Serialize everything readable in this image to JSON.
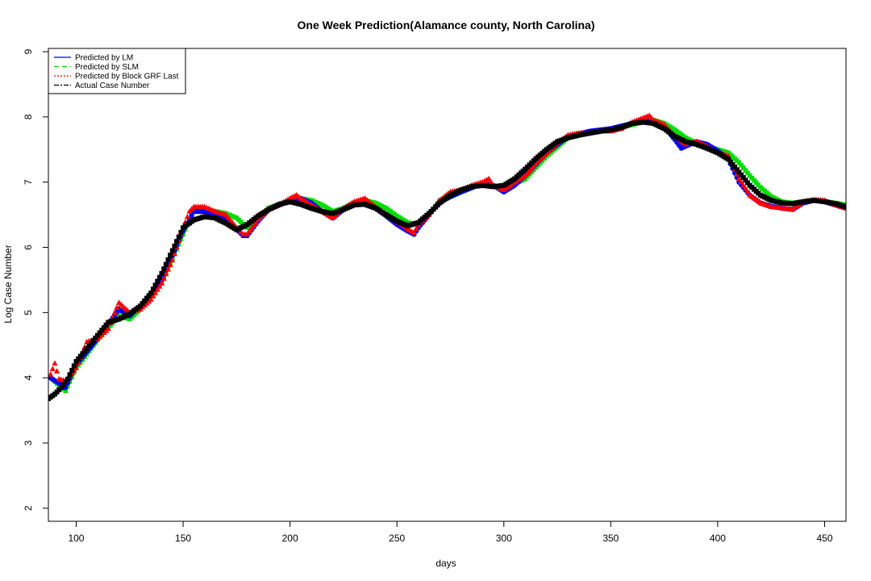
{
  "chart_data": {
    "type": "scatter",
    "title": "One Week Prediction(Alamance county, North Carolina)",
    "xlabel": "days",
    "ylabel": "Log Case Number",
    "xlim": [
      87,
      460
    ],
    "ylim": [
      1.8,
      9.05
    ],
    "x_ticks": [
      "100",
      "150",
      "200",
      "250",
      "300",
      "350",
      "400",
      "450"
    ],
    "y_ticks": [
      "2",
      "3",
      "4",
      "5",
      "6",
      "7",
      "8",
      "9"
    ],
    "legend_position": "top-left",
    "grid": false,
    "series": [
      {
        "name": "Predicted by LM",
        "style": "solid line / circles",
        "color": "#0000ff",
        "x": [
          88,
          95,
          100,
          110,
          120,
          125,
          130,
          140,
          150,
          155,
          160,
          165,
          170,
          175,
          178,
          180,
          185,
          190,
          200,
          205,
          210,
          215,
          220,
          225,
          230,
          235,
          240,
          245,
          250,
          255,
          258,
          260,
          265,
          270,
          280,
          290,
          295,
          300,
          305,
          310,
          320,
          330,
          340,
          350,
          360,
          365,
          370,
          375,
          380,
          383,
          385,
          390,
          395,
          400,
          405,
          410,
          415,
          420,
          425,
          430,
          435,
          440,
          445,
          450,
          455,
          460
        ],
        "y": [
          4.0,
          3.85,
          4.2,
          4.6,
          5.05,
          4.95,
          5.1,
          5.5,
          6.25,
          6.55,
          6.55,
          6.5,
          6.45,
          6.28,
          6.18,
          6.18,
          6.4,
          6.58,
          6.72,
          6.75,
          6.68,
          6.55,
          6.45,
          6.58,
          6.68,
          6.7,
          6.6,
          6.48,
          6.35,
          6.25,
          6.2,
          6.3,
          6.5,
          6.7,
          6.85,
          6.98,
          6.95,
          6.85,
          6.95,
          7.1,
          7.45,
          7.7,
          7.78,
          7.82,
          7.9,
          7.95,
          7.93,
          7.85,
          7.65,
          7.52,
          7.55,
          7.62,
          7.58,
          7.48,
          7.35,
          7.0,
          6.8,
          6.68,
          6.63,
          6.6,
          6.58,
          6.68,
          6.72,
          6.7,
          6.65,
          6.6
        ]
      },
      {
        "name": "Predicted by SLM",
        "style": "dashed line / squares",
        "color": "#00dd00",
        "x": [
          88,
          95,
          100,
          110,
          120,
          125,
          130,
          140,
          150,
          155,
          160,
          165,
          170,
          175,
          180,
          185,
          190,
          200,
          205,
          210,
          215,
          220,
          225,
          230,
          235,
          240,
          245,
          250,
          255,
          260,
          265,
          270,
          280,
          290,
          300,
          310,
          320,
          330,
          340,
          350,
          360,
          365,
          370,
          375,
          380,
          385,
          390,
          395,
          400,
          405,
          410,
          415,
          420,
          425,
          430,
          435,
          440,
          445,
          450,
          455,
          460
        ],
        "y": [
          4.0,
          3.8,
          4.15,
          4.58,
          4.95,
          4.9,
          5.05,
          5.45,
          6.2,
          6.58,
          6.58,
          6.55,
          6.52,
          6.45,
          6.3,
          6.45,
          6.6,
          6.72,
          6.75,
          6.72,
          6.65,
          6.55,
          6.6,
          6.68,
          6.72,
          6.68,
          6.6,
          6.48,
          6.38,
          6.35,
          6.5,
          6.72,
          6.85,
          6.98,
          6.9,
          7.05,
          7.4,
          7.68,
          7.75,
          7.8,
          7.88,
          7.92,
          7.95,
          7.9,
          7.8,
          7.68,
          7.6,
          7.55,
          7.5,
          7.45,
          7.3,
          7.1,
          6.92,
          6.78,
          6.7,
          6.68,
          6.7,
          6.72,
          6.7,
          6.68,
          6.65
        ]
      },
      {
        "name": "Predicted by Block GRF Last",
        "style": "dotted line / triangles",
        "color": "#ff0000",
        "x": [
          88,
          90,
          92,
          95,
          100,
          105,
          110,
          115,
          118,
          120,
          125,
          130,
          135,
          140,
          145,
          150,
          153,
          155,
          160,
          165,
          170,
          175,
          178,
          180,
          185,
          190,
          195,
          200,
          203,
          205,
          210,
          215,
          220,
          225,
          230,
          235,
          240,
          245,
          250,
          255,
          258,
          260,
          265,
          270,
          275,
          280,
          285,
          290,
          293,
          295,
          300,
          305,
          310,
          315,
          320,
          325,
          330,
          335,
          340,
          345,
          350,
          355,
          360,
          365,
          368,
          370,
          375,
          380,
          385,
          390,
          395,
          400,
          405,
          410,
          415,
          420,
          425,
          430,
          435,
          440,
          445,
          450,
          455,
          460
        ],
        "y": [
          4.05,
          4.22,
          3.98,
          3.95,
          4.15,
          4.55,
          4.6,
          4.75,
          5.0,
          5.15,
          5.0,
          5.05,
          5.2,
          5.45,
          5.8,
          6.3,
          6.55,
          6.62,
          6.62,
          6.55,
          6.5,
          6.3,
          6.2,
          6.2,
          6.42,
          6.58,
          6.65,
          6.75,
          6.8,
          6.75,
          6.65,
          6.55,
          6.45,
          6.6,
          6.7,
          6.75,
          6.62,
          6.5,
          6.4,
          6.28,
          6.22,
          6.35,
          6.5,
          6.72,
          6.85,
          6.88,
          6.95,
          7.0,
          7.05,
          6.95,
          6.88,
          7.0,
          7.1,
          7.28,
          7.45,
          7.6,
          7.72,
          7.75,
          7.75,
          7.78,
          7.78,
          7.82,
          7.92,
          7.98,
          8.02,
          7.95,
          7.88,
          7.7,
          7.58,
          7.62,
          7.55,
          7.45,
          7.4,
          7.05,
          6.8,
          6.68,
          6.62,
          6.6,
          6.58,
          6.7,
          6.73,
          6.72,
          6.65,
          6.6
        ]
      },
      {
        "name": "Actual Case Number",
        "style": "dash-dot line / filled squares",
        "color": "#000000",
        "x": [
          87,
          90,
          93,
          96,
          100,
          105,
          110,
          115,
          120,
          125,
          130,
          135,
          140,
          145,
          150,
          155,
          160,
          165,
          170,
          175,
          180,
          185,
          190,
          195,
          200,
          205,
          210,
          215,
          220,
          225,
          230,
          235,
          240,
          245,
          250,
          255,
          260,
          265,
          270,
          275,
          280,
          285,
          290,
          295,
          300,
          305,
          310,
          315,
          320,
          325,
          330,
          335,
          340,
          345,
          350,
          355,
          360,
          365,
          370,
          375,
          380,
          385,
          390,
          395,
          400,
          405,
          410,
          415,
          420,
          425,
          430,
          435,
          440,
          445,
          450,
          455,
          460
        ],
        "y": [
          3.68,
          3.75,
          3.85,
          3.98,
          4.25,
          4.45,
          4.65,
          4.85,
          4.9,
          4.98,
          5.1,
          5.3,
          5.6,
          5.95,
          6.3,
          6.42,
          6.47,
          6.45,
          6.37,
          6.27,
          6.35,
          6.48,
          6.58,
          6.66,
          6.7,
          6.66,
          6.6,
          6.55,
          6.52,
          6.58,
          6.65,
          6.66,
          6.6,
          6.5,
          6.4,
          6.33,
          6.38,
          6.52,
          6.68,
          6.8,
          6.88,
          6.93,
          6.95,
          6.93,
          6.95,
          7.05,
          7.2,
          7.36,
          7.5,
          7.62,
          7.68,
          7.72,
          7.75,
          7.78,
          7.8,
          7.84,
          7.9,
          7.92,
          7.9,
          7.82,
          7.7,
          7.62,
          7.58,
          7.52,
          7.45,
          7.35,
          7.15,
          6.95,
          6.8,
          6.72,
          6.68,
          6.67,
          6.7,
          6.72,
          6.7,
          6.67,
          6.62
        ]
      }
    ]
  }
}
